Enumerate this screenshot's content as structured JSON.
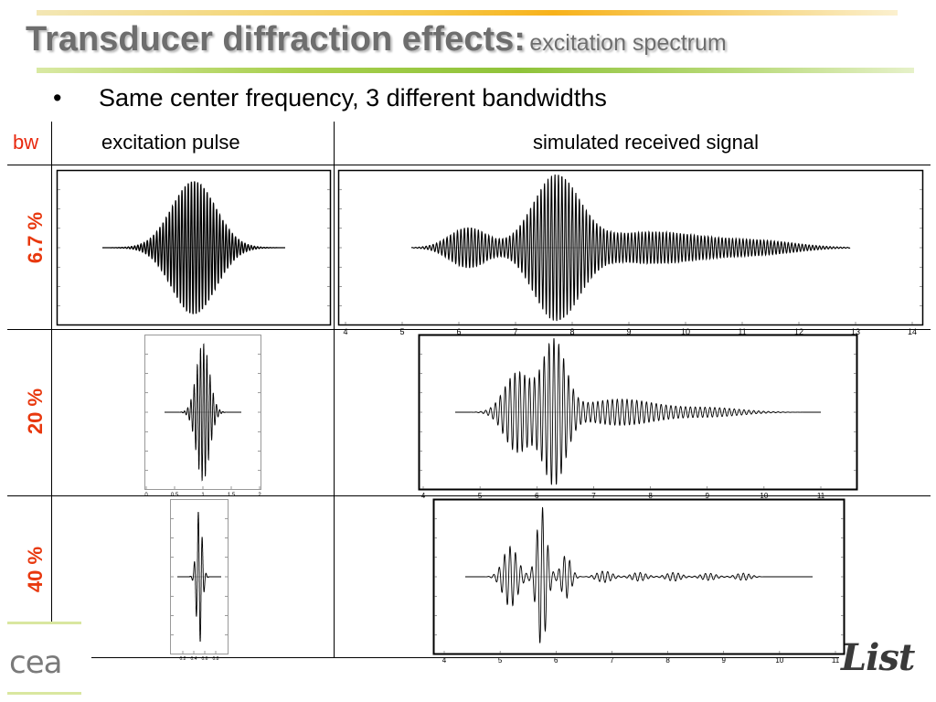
{
  "title": {
    "main": "Transducer diffraction effects:",
    "sub": "excitation spectrum"
  },
  "bullet": {
    "marker": "•",
    "text": "Same center frequency, 3 different bandwidths"
  },
  "table": {
    "col_bw": "bw",
    "col_excitation": "excitation pulse",
    "col_received": "simulated received signal",
    "rows": [
      {
        "bw": "6.7 %"
      },
      {
        "bw": "20 %"
      },
      {
        "bw": "40 %"
      }
    ]
  },
  "axes": {
    "row1_received_ticks": [
      "4",
      "5",
      "6",
      "7",
      "8",
      "9",
      "10",
      "11",
      "12",
      "13",
      "14"
    ],
    "row2_excitation_ticks": [
      "0",
      "0.5",
      "1",
      "1.5",
      "2"
    ],
    "row2_received_ticks": [
      "4",
      "5",
      "6",
      "7",
      "8",
      "9",
      "10",
      "11"
    ],
    "row3_excitation_ticks": [
      "0.2",
      "0.4",
      "0.6",
      "0.8"
    ],
    "row3_received_ticks": [
      "4",
      "5",
      "6",
      "7",
      "8",
      "9",
      "10",
      "11"
    ]
  },
  "logos": {
    "left": "cea",
    "right": "List"
  }
}
